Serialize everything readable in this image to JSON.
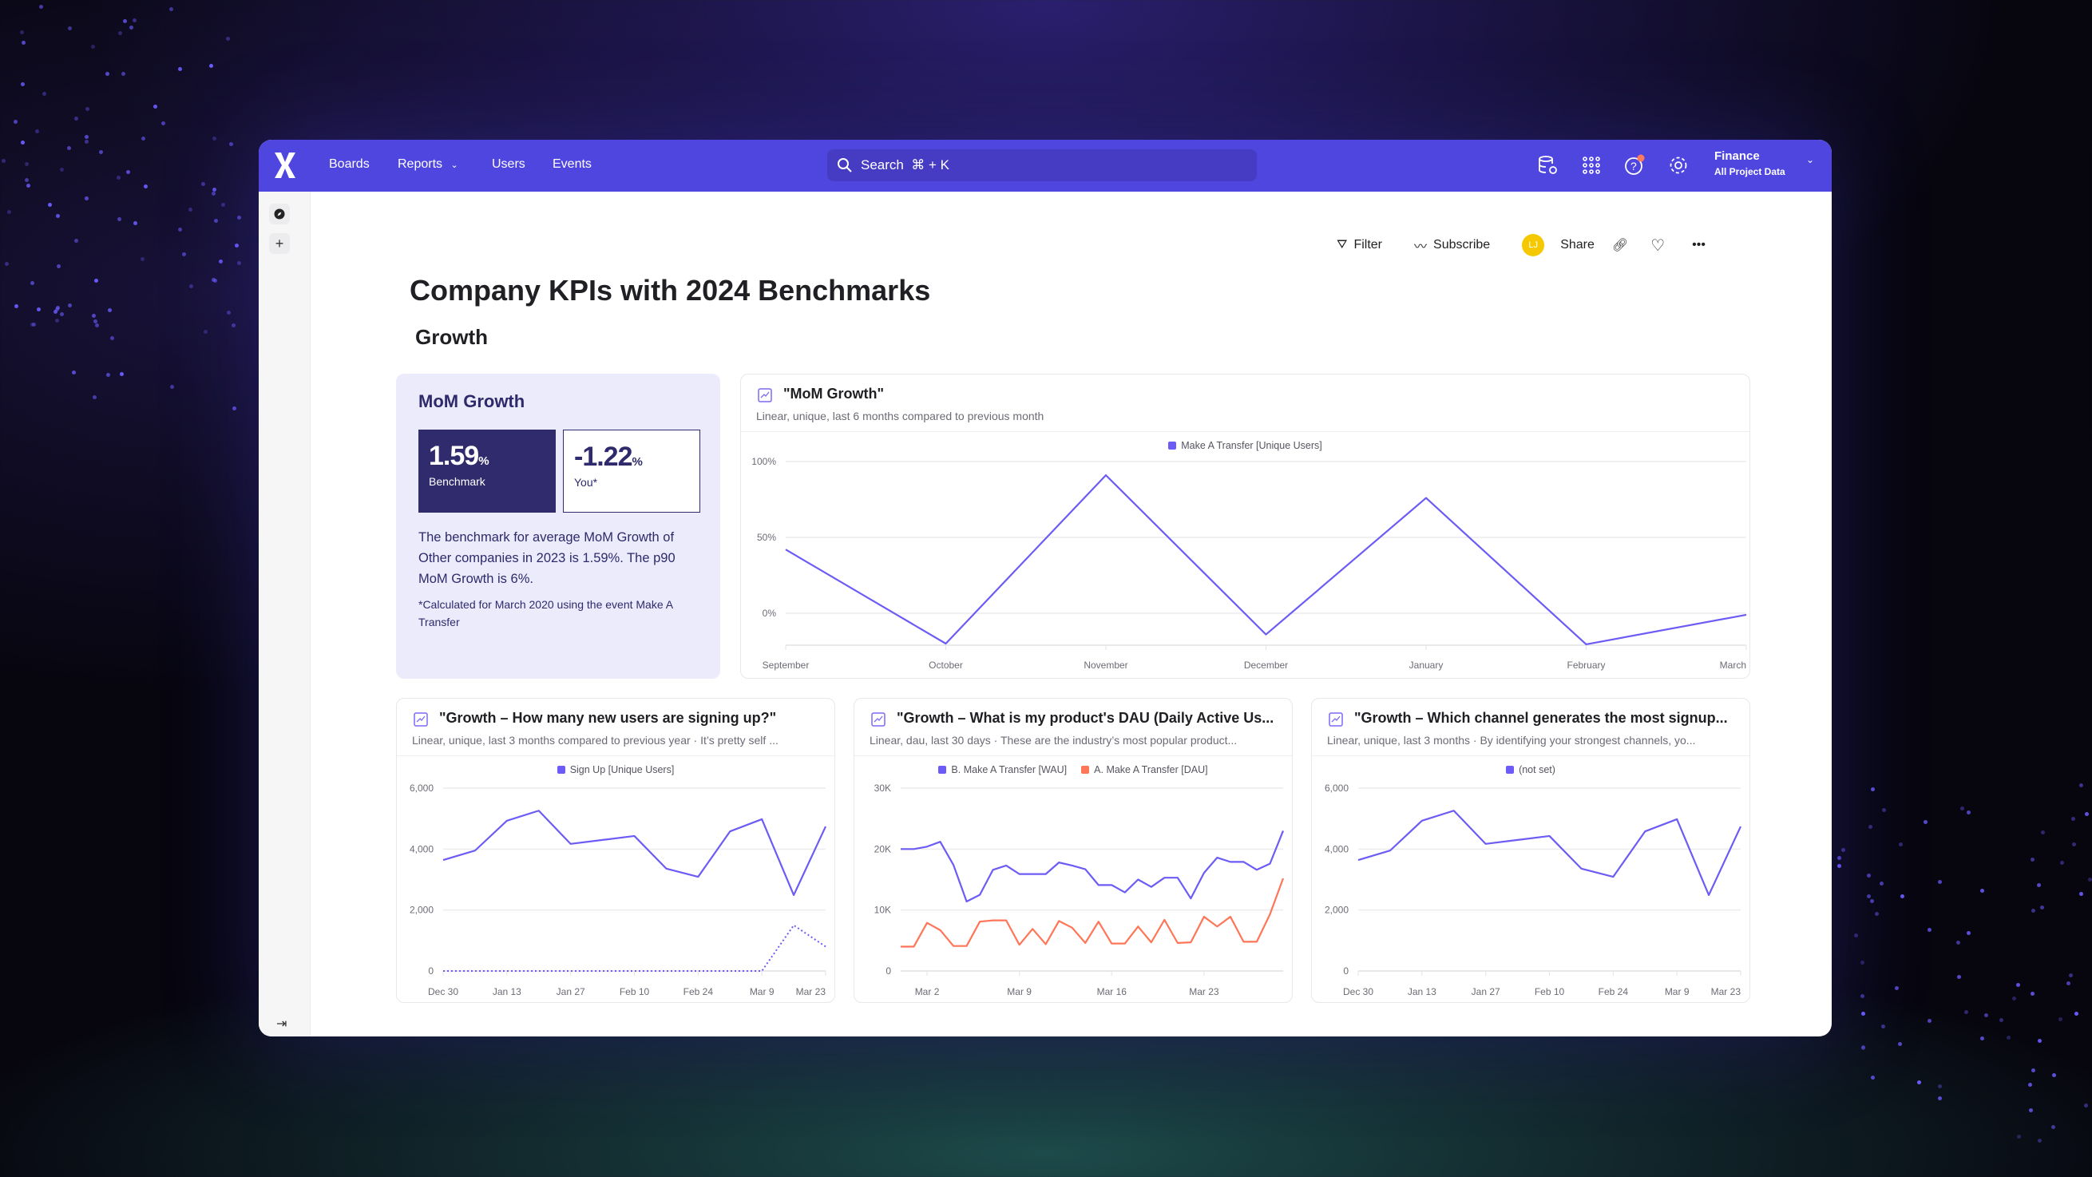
{
  "nav": {
    "links": [
      "Boards",
      "Reports",
      "Users",
      "Events"
    ],
    "search_placeholder": "Search  ⌘ + K",
    "icons": [
      "database-settings-icon",
      "apps-grid-icon",
      "help-icon",
      "settings-icon"
    ],
    "project_name": "Finance",
    "project_scope": "All Project Data",
    "accent": "#4f46e0",
    "notification_color": "#ff7a59"
  },
  "toolbar": {
    "filter": "Filter",
    "subscribe": "Subscribe",
    "avatar_initials": "LJ",
    "avatar_color": "#f5c800",
    "share": "Share"
  },
  "page": {
    "title": "Company KPIs with 2024 Benchmarks",
    "section": "Growth"
  },
  "mom_card": {
    "title": "MoM Growth",
    "benchmark_value": "1.59",
    "benchmark_unit": "%",
    "benchmark_label": "Benchmark",
    "you_value": "-1.22",
    "you_unit": "%",
    "you_label": "You*",
    "description": "The benchmark for average MoM Growth of Other companies in 2023 is 1.59%. The p90 MoM Growth is 6%.",
    "note": "*Calculated for March 2020 using the event Make A Transfer"
  },
  "chart_data": [
    {
      "type": "line",
      "title": "\"MoM Growth\"",
      "subtitle": "Linear, unique, last 6 months compared to previous month",
      "categories": [
        "September",
        "October",
        "November",
        "December",
        "January",
        "February",
        "March"
      ],
      "series": [
        {
          "name": "Make A Transfer [Unique Users]",
          "color": "#6c5cf5",
          "values": [
            42,
            -20,
            91,
            -14,
            76,
            -20.5,
            -1
          ]
        }
      ],
      "yticks": [
        {
          "v": 0,
          "label": "0%"
        },
        {
          "v": 50,
          "label": "50%"
        },
        {
          "v": 100,
          "label": "100%"
        }
      ],
      "ylim": [
        -22,
        100
      ],
      "grid": true,
      "legend": "top"
    },
    {
      "type": "line",
      "title": "\"Growth – How many new users are signing up?\"",
      "subtitle": "Linear, unique, last 3 months compared to previous year · It’s pretty self ...",
      "x": [
        "Dec 30",
        "Jan 6",
        "Jan 13",
        "Jan 20",
        "Jan 27",
        "Feb 3",
        "Feb 10",
        "Feb 17",
        "Feb 24",
        "Mar 2",
        "Mar 9",
        "Mar 16",
        "Mar 23"
      ],
      "xtick_labels": [
        "Dec 30",
        "Jan 13",
        "Jan 27",
        "Feb 10",
        "Feb 24",
        "Mar 9",
        "Mar 23"
      ],
      "series": [
        {
          "name": "Sign Up [Unique Users]",
          "color": "#6c5cf5",
          "values": [
            3640,
            3950,
            4930,
            5260,
            4170,
            4300,
            4430,
            3360,
            3090,
            4580,
            4980,
            2490,
            4740
          ]
        },
        {
          "color": "#6c5cf5",
          "dashed": true,
          "values": [
            0,
            0,
            0,
            0,
            0,
            0,
            0,
            0,
            0,
            0,
            0,
            1500,
            800
          ]
        }
      ],
      "yticks": [
        {
          "v": 0,
          "label": "0"
        },
        {
          "v": 2000,
          "label": "2,000"
        },
        {
          "v": 4000,
          "label": "4,000"
        },
        {
          "v": 6000,
          "label": "6,000"
        }
      ],
      "ylim": [
        0,
        6000
      ],
      "grid": true,
      "legend": "top"
    },
    {
      "type": "line",
      "title": "\"Growth – What is my product's DAU (Daily Active Us...",
      "subtitle": "Linear, dau, last 30 days · These are the industry’s most popular product...",
      "x": [
        "Feb 29",
        "Mar 1",
        "Mar 2",
        "Mar 3",
        "Mar 4",
        "Mar 5",
        "Mar 6",
        "Mar 7",
        "Mar 8",
        "Mar 9",
        "Mar 10",
        "Mar 11",
        "Mar 12",
        "Mar 13",
        "Mar 14",
        "Mar 15",
        "Mar 16",
        "Mar 17",
        "Mar 18",
        "Mar 19",
        "Mar 20",
        "Mar 21",
        "Mar 22",
        "Mar 23",
        "Mar 24",
        "Mar 25",
        "Mar 26",
        "Mar 27",
        "Mar 28",
        "Mar 29"
      ],
      "xtick_labels": [
        "Mar 2",
        "Mar 9",
        "Mar 16",
        "Mar 23"
      ],
      "series": [
        {
          "name": "B. Make A Transfer [WAU]",
          "color": "#6c5cf5",
          "values": [
            20000,
            20000,
            20400,
            21200,
            17400,
            11400,
            12500,
            16600,
            17300,
            15900,
            15900,
            15900,
            17800,
            17300,
            16700,
            14100,
            14100,
            12900,
            15000,
            13800,
            15300,
            15300,
            11900,
            16100,
            18600,
            17900,
            17900,
            16600,
            17600,
            23000
          ]
        },
        {
          "name": "A. Make A Transfer [DAU]",
          "color": "#ff7557",
          "values": [
            4000,
            4000,
            7900,
            6700,
            4100,
            4100,
            8100,
            8300,
            8300,
            4300,
            6900,
            4400,
            8200,
            7100,
            4600,
            8100,
            4500,
            4500,
            7300,
            4700,
            8400,
            4600,
            4700,
            8900,
            7300,
            8900,
            4800,
            4800,
            9300,
            15200
          ]
        }
      ],
      "yticks": [
        {
          "v": 0,
          "label": "0"
        },
        {
          "v": 10000,
          "label": "10K"
        },
        {
          "v": 20000,
          "label": "20K"
        },
        {
          "v": 30000,
          "label": "30K"
        }
      ],
      "ylim": [
        0,
        30000
      ],
      "grid": true,
      "legend": "top"
    },
    {
      "type": "line",
      "title": "\"Growth – Which channel generates the most signup...",
      "subtitle": "Linear, unique, last 3 months · By identifying your strongest channels, yo...",
      "x": [
        "Dec 30",
        "Jan 6",
        "Jan 13",
        "Jan 20",
        "Jan 27",
        "Feb 3",
        "Feb 10",
        "Feb 17",
        "Feb 24",
        "Mar 2",
        "Mar 9",
        "Mar 16",
        "Mar 23"
      ],
      "xtick_labels": [
        "Dec 30",
        "Jan 13",
        "Jan 27",
        "Feb 10",
        "Feb 24",
        "Mar 9",
        "Mar 23"
      ],
      "series": [
        {
          "name": "(not set)",
          "color": "#6c5cf5",
          "values": [
            3640,
            3950,
            4930,
            5260,
            4170,
            4300,
            4430,
            3360,
            3090,
            4580,
            4980,
            2490,
            4740
          ]
        }
      ],
      "yticks": [
        {
          "v": 0,
          "label": "0"
        },
        {
          "v": 2000,
          "label": "2,000"
        },
        {
          "v": 4000,
          "label": "4,000"
        },
        {
          "v": 6000,
          "label": "6,000"
        }
      ],
      "ylim": [
        0,
        6000
      ],
      "grid": true,
      "legend": "top"
    }
  ]
}
